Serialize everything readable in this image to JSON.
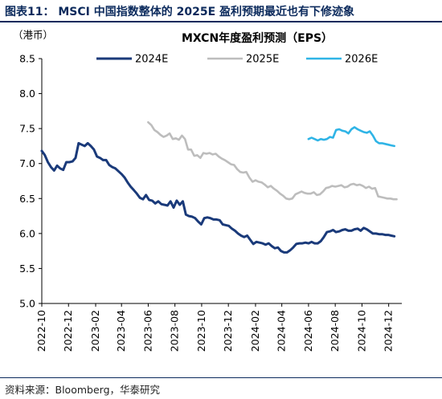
{
  "figure_title": "图表11： MSCI 中国指数整体的 2025E 盈利预期最近也有下修迹象",
  "source": "资料来源：Bloomberg，华泰研究",
  "chart_data": {
    "type": "line",
    "title": "MXCN年度盈利预测（EPS）",
    "unit_label": "（港币）",
    "ylim": [
      5.0,
      8.5
    ],
    "y_ticks": [
      "5.0",
      "5.5",
      "6.0",
      "6.5",
      "7.0",
      "7.5",
      "8.0",
      "8.5"
    ],
    "x_range": [
      "2022-10-01",
      "2024-12-31"
    ],
    "x_ticks": [
      "2022-10",
      "2022-12",
      "2023-02",
      "2023-04",
      "2023-06",
      "2023-08",
      "2023-10",
      "2023-12",
      "2024-02",
      "2024-04",
      "2024-06",
      "2024-08",
      "2024-10",
      "2024-12"
    ],
    "legend_position": "top",
    "grid": false,
    "series": [
      {
        "name": "2024E",
        "color": "#1a3a7a",
        "points": [
          [
            "2022-10-01",
            7.18
          ],
          [
            "2022-10-08",
            7.12
          ],
          [
            "2022-10-15",
            7.02
          ],
          [
            "2022-10-22",
            6.95
          ],
          [
            "2022-10-29",
            6.9
          ],
          [
            "2022-11-05",
            6.97
          ],
          [
            "2022-11-12",
            6.93
          ],
          [
            "2022-11-19",
            6.91
          ],
          [
            "2022-11-26",
            7.02
          ],
          [
            "2022-12-03",
            7.02
          ],
          [
            "2022-12-10",
            7.03
          ],
          [
            "2022-12-17",
            7.08
          ],
          [
            "2022-12-24",
            7.29
          ],
          [
            "2022-12-31",
            7.27
          ],
          [
            "2023-01-07",
            7.25
          ],
          [
            "2023-01-14",
            7.29
          ],
          [
            "2023-01-21",
            7.25
          ],
          [
            "2023-01-28",
            7.2
          ],
          [
            "2023-02-04",
            7.1
          ],
          [
            "2023-02-11",
            7.08
          ],
          [
            "2023-02-18",
            7.05
          ],
          [
            "2023-02-25",
            7.05
          ],
          [
            "2023-03-04",
            6.98
          ],
          [
            "2023-03-11",
            6.95
          ],
          [
            "2023-03-18",
            6.93
          ],
          [
            "2023-03-25",
            6.89
          ],
          [
            "2023-04-01",
            6.85
          ],
          [
            "2023-04-08",
            6.8
          ],
          [
            "2023-04-15",
            6.73
          ],
          [
            "2023-04-22",
            6.67
          ],
          [
            "2023-04-29",
            6.62
          ],
          [
            "2023-05-06",
            6.57
          ],
          [
            "2023-05-13",
            6.51
          ],
          [
            "2023-05-20",
            6.49
          ],
          [
            "2023-05-27",
            6.55
          ],
          [
            "2023-06-03",
            6.48
          ],
          [
            "2023-06-10",
            6.47
          ],
          [
            "2023-06-17",
            6.43
          ],
          [
            "2023-06-24",
            6.46
          ],
          [
            "2023-07-01",
            6.42
          ],
          [
            "2023-07-08",
            6.41
          ],
          [
            "2023-07-15",
            6.4
          ],
          [
            "2023-07-22",
            6.46
          ],
          [
            "2023-07-29",
            6.37
          ],
          [
            "2023-08-05",
            6.47
          ],
          [
            "2023-08-12",
            6.41
          ],
          [
            "2023-08-19",
            6.46
          ],
          [
            "2023-08-26",
            6.27
          ],
          [
            "2023-09-02",
            6.25
          ],
          [
            "2023-09-09",
            6.24
          ],
          [
            "2023-09-16",
            6.22
          ],
          [
            "2023-09-23",
            6.17
          ],
          [
            "2023-09-30",
            6.13
          ],
          [
            "2023-10-07",
            6.22
          ],
          [
            "2023-10-14",
            6.23
          ],
          [
            "2023-10-21",
            6.22
          ],
          [
            "2023-10-28",
            6.2
          ],
          [
            "2023-11-04",
            6.2
          ],
          [
            "2023-11-11",
            6.19
          ],
          [
            "2023-11-18",
            6.13
          ],
          [
            "2023-11-25",
            6.12
          ],
          [
            "2023-12-02",
            6.11
          ],
          [
            "2023-12-09",
            6.07
          ],
          [
            "2023-12-16",
            6.04
          ],
          [
            "2023-12-23",
            6.0
          ],
          [
            "2023-12-30",
            5.97
          ],
          [
            "2024-01-06",
            5.95
          ],
          [
            "2024-01-13",
            5.97
          ],
          [
            "2024-01-20",
            5.91
          ],
          [
            "2024-01-27",
            5.85
          ],
          [
            "2024-02-03",
            5.88
          ],
          [
            "2024-02-10",
            5.87
          ],
          [
            "2024-02-17",
            5.86
          ],
          [
            "2024-02-24",
            5.84
          ],
          [
            "2024-03-02",
            5.86
          ],
          [
            "2024-03-09",
            5.82
          ],
          [
            "2024-03-16",
            5.79
          ],
          [
            "2024-03-23",
            5.8
          ],
          [
            "2024-03-30",
            5.75
          ],
          [
            "2024-04-06",
            5.73
          ],
          [
            "2024-04-13",
            5.73
          ],
          [
            "2024-04-20",
            5.76
          ],
          [
            "2024-04-27",
            5.8
          ],
          [
            "2024-05-04",
            5.85
          ],
          [
            "2024-05-11",
            5.86
          ],
          [
            "2024-05-18",
            5.86
          ],
          [
            "2024-05-25",
            5.87
          ],
          [
            "2024-06-01",
            5.86
          ],
          [
            "2024-06-08",
            5.88
          ],
          [
            "2024-06-15",
            5.86
          ],
          [
            "2024-06-22",
            5.86
          ],
          [
            "2024-06-29",
            5.89
          ],
          [
            "2024-07-06",
            5.95
          ],
          [
            "2024-07-13",
            6.02
          ],
          [
            "2024-07-20",
            6.03
          ],
          [
            "2024-07-27",
            6.05
          ],
          [
            "2024-08-03",
            6.02
          ],
          [
            "2024-08-10",
            6.03
          ],
          [
            "2024-08-17",
            6.05
          ],
          [
            "2024-08-24",
            6.06
          ],
          [
            "2024-08-31",
            6.04
          ],
          [
            "2024-09-07",
            6.04
          ],
          [
            "2024-09-14",
            6.06
          ],
          [
            "2024-09-21",
            6.07
          ],
          [
            "2024-09-28",
            6.04
          ],
          [
            "2024-10-05",
            6.08
          ],
          [
            "2024-10-12",
            6.06
          ],
          [
            "2024-10-19",
            6.03
          ],
          [
            "2024-10-26",
            6.0
          ],
          [
            "2024-11-02",
            6.0
          ],
          [
            "2024-11-09",
            5.99
          ],
          [
            "2024-11-16",
            5.99
          ],
          [
            "2024-11-23",
            5.98
          ],
          [
            "2024-11-30",
            5.98
          ],
          [
            "2024-12-07",
            5.97
          ],
          [
            "2024-12-14",
            5.96
          ]
        ]
      },
      {
        "name": "2025E",
        "color": "#bdbdbd",
        "points": [
          [
            "2023-06-01",
            7.59
          ],
          [
            "2023-06-08",
            7.55
          ],
          [
            "2023-06-15",
            7.48
          ],
          [
            "2023-06-22",
            7.45
          ],
          [
            "2023-06-29",
            7.41
          ],
          [
            "2023-07-06",
            7.38
          ],
          [
            "2023-07-13",
            7.4
          ],
          [
            "2023-07-20",
            7.43
          ],
          [
            "2023-07-27",
            7.35
          ],
          [
            "2023-08-03",
            7.36
          ],
          [
            "2023-08-10",
            7.34
          ],
          [
            "2023-08-17",
            7.4
          ],
          [
            "2023-08-24",
            7.35
          ],
          [
            "2023-08-31",
            7.2
          ],
          [
            "2023-09-07",
            7.2
          ],
          [
            "2023-09-14",
            7.11
          ],
          [
            "2023-09-21",
            7.12
          ],
          [
            "2023-09-28",
            7.08
          ],
          [
            "2023-10-05",
            7.15
          ],
          [
            "2023-10-12",
            7.14
          ],
          [
            "2023-10-19",
            7.15
          ],
          [
            "2023-10-26",
            7.13
          ],
          [
            "2023-11-02",
            7.14
          ],
          [
            "2023-11-09",
            7.1
          ],
          [
            "2023-11-16",
            7.07
          ],
          [
            "2023-11-23",
            7.05
          ],
          [
            "2023-11-30",
            7.02
          ],
          [
            "2023-12-07",
            6.99
          ],
          [
            "2023-12-14",
            6.98
          ],
          [
            "2023-12-21",
            6.92
          ],
          [
            "2023-12-28",
            6.88
          ],
          [
            "2024-01-04",
            6.87
          ],
          [
            "2024-01-11",
            6.88
          ],
          [
            "2024-01-18",
            6.8
          ],
          [
            "2024-01-25",
            6.74
          ],
          [
            "2024-02-01",
            6.76
          ],
          [
            "2024-02-08",
            6.74
          ],
          [
            "2024-02-15",
            6.73
          ],
          [
            "2024-02-22",
            6.7
          ],
          [
            "2024-02-29",
            6.66
          ],
          [
            "2024-03-07",
            6.68
          ],
          [
            "2024-03-14",
            6.64
          ],
          [
            "2024-03-21",
            6.61
          ],
          [
            "2024-03-28",
            6.57
          ],
          [
            "2024-04-04",
            6.54
          ],
          [
            "2024-04-11",
            6.5
          ],
          [
            "2024-04-18",
            6.49
          ],
          [
            "2024-04-25",
            6.5
          ],
          [
            "2024-05-02",
            6.56
          ],
          [
            "2024-05-09",
            6.58
          ],
          [
            "2024-05-16",
            6.6
          ],
          [
            "2024-05-23",
            6.58
          ],
          [
            "2024-05-30",
            6.57
          ],
          [
            "2024-06-06",
            6.57
          ],
          [
            "2024-06-13",
            6.59
          ],
          [
            "2024-06-20",
            6.55
          ],
          [
            "2024-06-27",
            6.56
          ],
          [
            "2024-07-04",
            6.6
          ],
          [
            "2024-07-11",
            6.65
          ],
          [
            "2024-07-18",
            6.66
          ],
          [
            "2024-07-25",
            6.68
          ],
          [
            "2024-08-01",
            6.67
          ],
          [
            "2024-08-08",
            6.68
          ],
          [
            "2024-08-15",
            6.69
          ],
          [
            "2024-08-22",
            6.66
          ],
          [
            "2024-08-29",
            6.67
          ],
          [
            "2024-09-05",
            6.7
          ],
          [
            "2024-09-12",
            6.71
          ],
          [
            "2024-09-19",
            6.69
          ],
          [
            "2024-09-26",
            6.7
          ],
          [
            "2024-10-03",
            6.68
          ],
          [
            "2024-10-10",
            6.65
          ],
          [
            "2024-10-17",
            6.67
          ],
          [
            "2024-10-24",
            6.64
          ],
          [
            "2024-10-31",
            6.65
          ],
          [
            "2024-11-07",
            6.53
          ],
          [
            "2024-11-14",
            6.52
          ],
          [
            "2024-11-21",
            6.51
          ],
          [
            "2024-11-28",
            6.5
          ],
          [
            "2024-12-05",
            6.5
          ],
          [
            "2024-12-12",
            6.49
          ],
          [
            "2024-12-19",
            6.49
          ]
        ]
      },
      {
        "name": "2026E",
        "color": "#2fb4e6",
        "points": [
          [
            "2024-06-01",
            7.35
          ],
          [
            "2024-06-08",
            7.37
          ],
          [
            "2024-06-15",
            7.35
          ],
          [
            "2024-06-22",
            7.33
          ],
          [
            "2024-06-29",
            7.35
          ],
          [
            "2024-07-06",
            7.34
          ],
          [
            "2024-07-13",
            7.35
          ],
          [
            "2024-07-20",
            7.38
          ],
          [
            "2024-07-27",
            7.37
          ],
          [
            "2024-08-03",
            7.48
          ],
          [
            "2024-08-10",
            7.49
          ],
          [
            "2024-08-17",
            7.47
          ],
          [
            "2024-08-24",
            7.46
          ],
          [
            "2024-08-31",
            7.43
          ],
          [
            "2024-09-07",
            7.49
          ],
          [
            "2024-09-14",
            7.52
          ],
          [
            "2024-09-21",
            7.49
          ],
          [
            "2024-09-28",
            7.47
          ],
          [
            "2024-10-05",
            7.45
          ],
          [
            "2024-10-12",
            7.44
          ],
          [
            "2024-10-19",
            7.46
          ],
          [
            "2024-10-26",
            7.4
          ],
          [
            "2024-11-02",
            7.32
          ],
          [
            "2024-11-09",
            7.29
          ],
          [
            "2024-11-16",
            7.29
          ],
          [
            "2024-11-23",
            7.28
          ],
          [
            "2024-11-30",
            7.27
          ],
          [
            "2024-12-07",
            7.26
          ],
          [
            "2024-12-14",
            7.25
          ]
        ]
      }
    ]
  }
}
